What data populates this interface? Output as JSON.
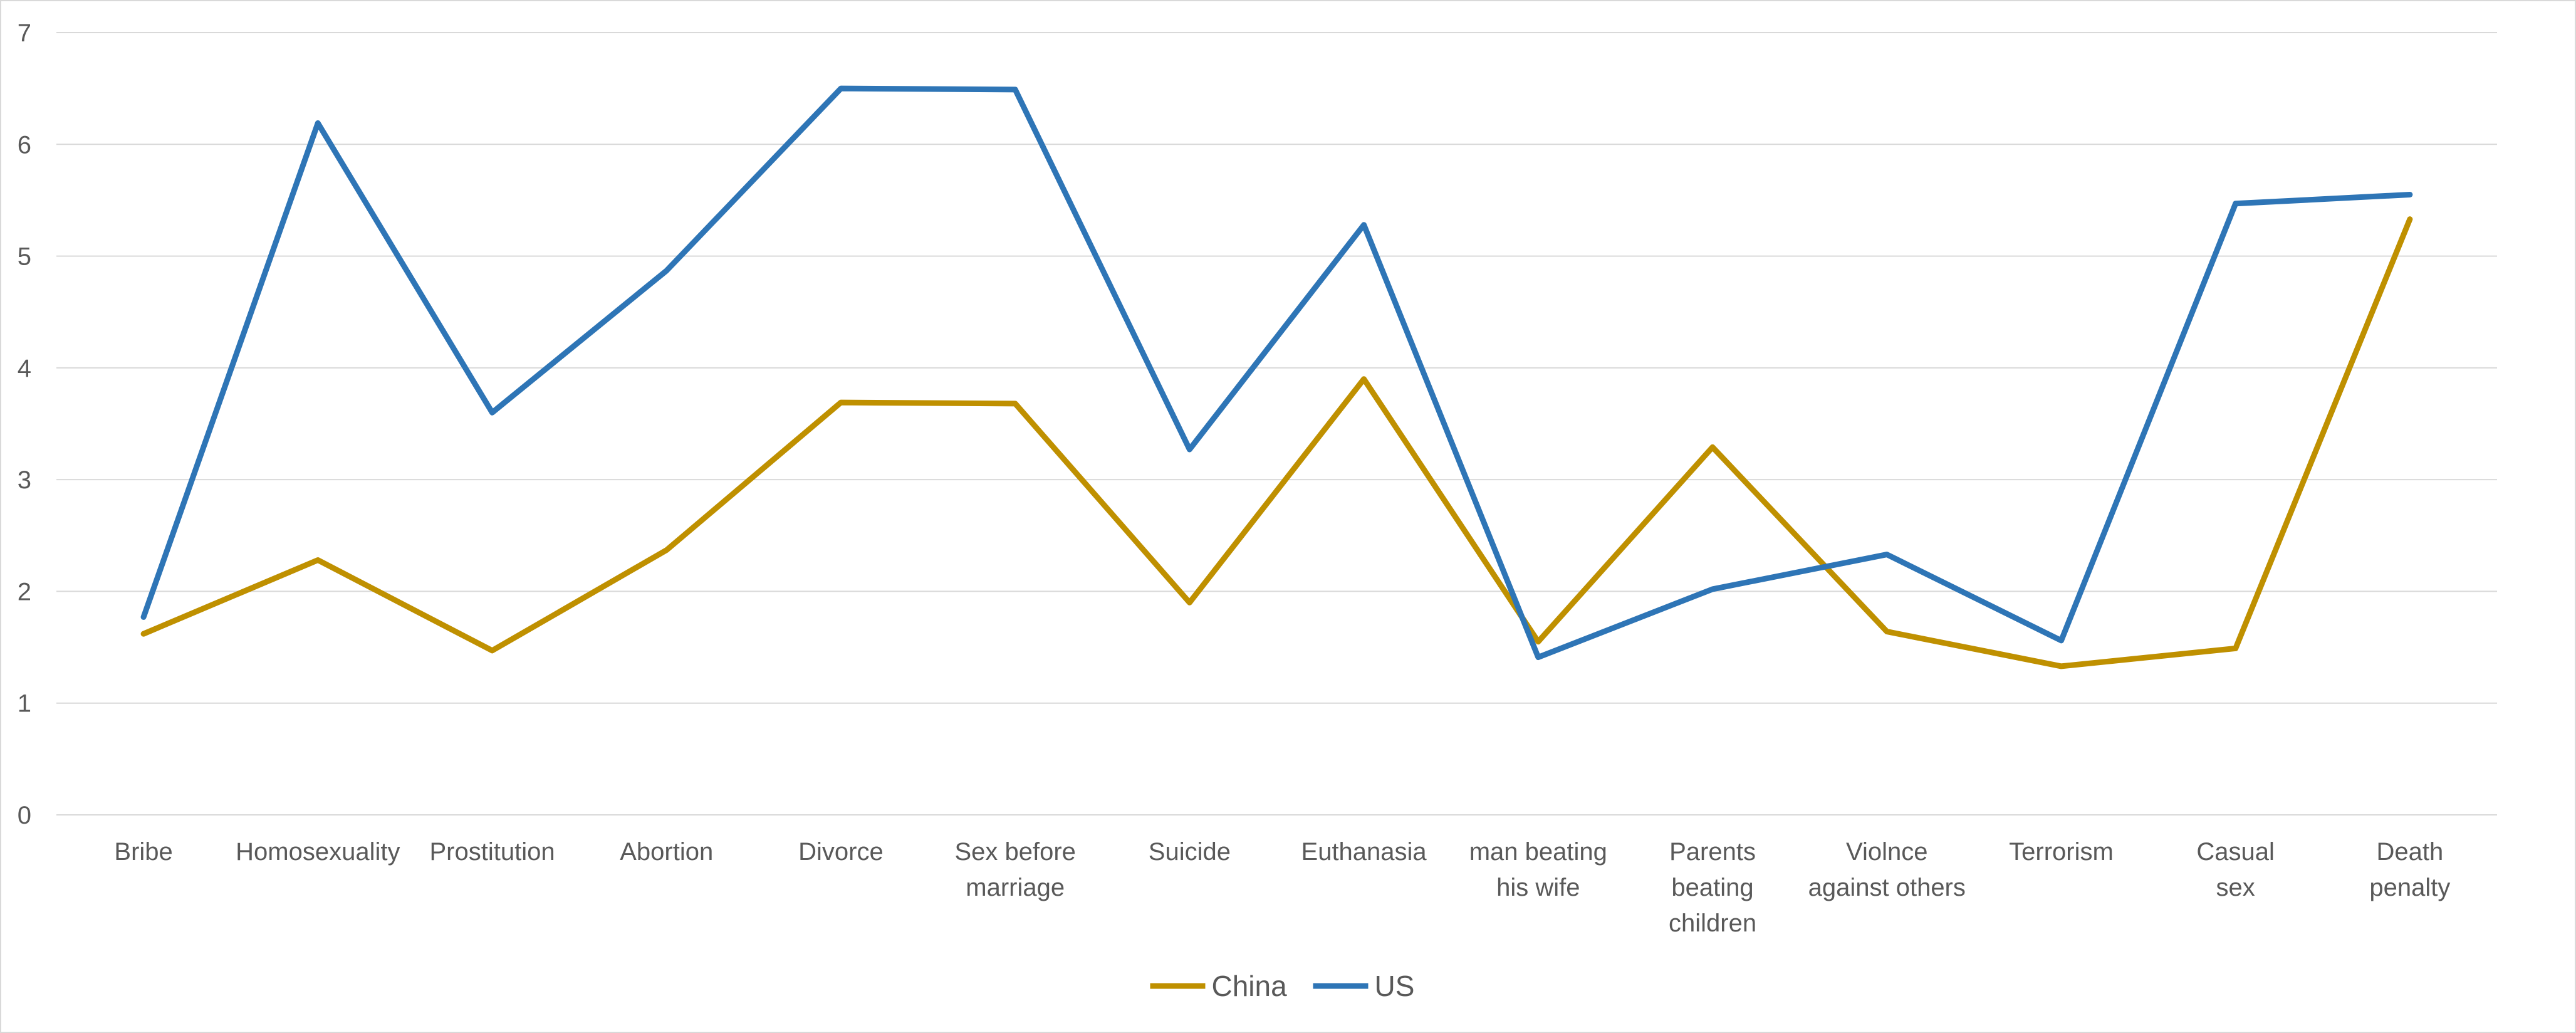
{
  "chart_data": {
    "type": "line",
    "categories": [
      [
        "Bribe"
      ],
      [
        "Homosexuality"
      ],
      [
        "Prostitution"
      ],
      [
        "Abortion"
      ],
      [
        "Divorce"
      ],
      [
        "Sex before",
        "marriage"
      ],
      [
        "Suicide"
      ],
      [
        "Euthanasia"
      ],
      [
        "man beating",
        "his wife"
      ],
      [
        "Parents",
        "beating",
        "children"
      ],
      [
        "Violnce",
        "against others"
      ],
      [
        "Terrorism"
      ],
      [
        "Casual",
        "sex"
      ],
      [
        "Death",
        "penalty"
      ]
    ],
    "series": [
      {
        "name": "China",
        "color": "#BF9000",
        "values": [
          1.62,
          2.28,
          1.47,
          2.37,
          3.69,
          3.68,
          1.9,
          3.9,
          1.55,
          3.29,
          1.64,
          1.33,
          1.49,
          5.33
        ]
      },
      {
        "name": "US",
        "color": "#2E75B6",
        "values": [
          1.77,
          6.19,
          3.6,
          4.87,
          6.5,
          6.49,
          3.27,
          5.28,
          1.41,
          2.02,
          2.33,
          1.56,
          5.47,
          5.55
        ]
      }
    ],
    "ylim": [
      0,
      7
    ],
    "yticks": [
      0,
      1,
      2,
      3,
      4,
      5,
      6,
      7
    ],
    "grid": "horizontal",
    "legend": "bottom-center",
    "title": "",
    "xlabel": "",
    "ylabel": ""
  }
}
